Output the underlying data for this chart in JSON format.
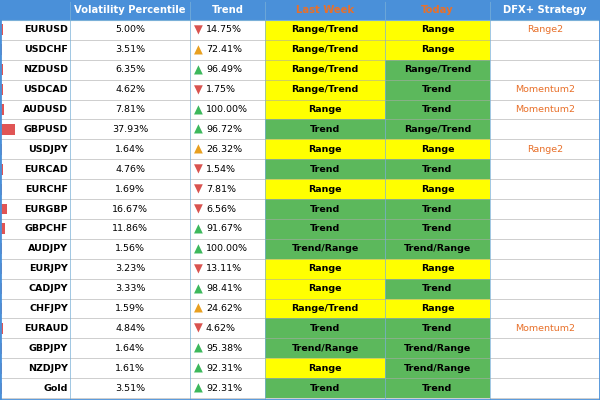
{
  "rows": [
    {
      "pair": "EURUSD",
      "vol": "5.00%",
      "arrow": "down",
      "trend": "14.75%",
      "last_week": "Range/Trend",
      "today": "Range",
      "strategy": "Range2",
      "vol_bar": 5.0
    },
    {
      "pair": "USDCHF",
      "vol": "3.51%",
      "arrow": "up_orange",
      "trend": "72.41%",
      "last_week": "Range/Trend",
      "today": "Range",
      "strategy": "",
      "vol_bar": 3.51
    },
    {
      "pair": "NZDUSD",
      "vol": "6.35%",
      "arrow": "up",
      "trend": "96.49%",
      "last_week": "Range/Trend",
      "today": "Range/Trend",
      "strategy": "",
      "vol_bar": 6.35
    },
    {
      "pair": "USDCAD",
      "vol": "4.62%",
      "arrow": "down",
      "trend": "1.75%",
      "last_week": "Range/Trend",
      "today": "Trend",
      "strategy": "Momentum2",
      "vol_bar": 4.62
    },
    {
      "pair": "AUDUSD",
      "vol": "7.81%",
      "arrow": "up",
      "trend": "100.00%",
      "last_week": "Range",
      "today": "Trend",
      "strategy": "Momentum2",
      "vol_bar": 7.81
    },
    {
      "pair": "GBPUSD",
      "vol": "37.93%",
      "arrow": "up",
      "trend": "96.72%",
      "last_week": "Trend",
      "today": "Range/Trend",
      "strategy": "",
      "vol_bar": 37.93
    },
    {
      "pair": "USDJPY",
      "vol": "1.64%",
      "arrow": "up_orange",
      "trend": "26.32%",
      "last_week": "Range",
      "today": "Range",
      "strategy": "Range2",
      "vol_bar": 1.64
    },
    {
      "pair": "EURCAD",
      "vol": "4.76%",
      "arrow": "down",
      "trend": "1.54%",
      "last_week": "Trend",
      "today": "Trend",
      "strategy": "",
      "vol_bar": 4.76
    },
    {
      "pair": "EURCHF",
      "vol": "1.69%",
      "arrow": "down",
      "trend": "7.81%",
      "last_week": "Range",
      "today": "Range",
      "strategy": "",
      "vol_bar": 1.69
    },
    {
      "pair": "EURGBP",
      "vol": "16.67%",
      "arrow": "down",
      "trend": "6.56%",
      "last_week": "Trend",
      "today": "Trend",
      "strategy": "",
      "vol_bar": 16.67
    },
    {
      "pair": "GBPCHF",
      "vol": "11.86%",
      "arrow": "up",
      "trend": "91.67%",
      "last_week": "Trend",
      "today": "Trend",
      "strategy": "",
      "vol_bar": 11.86
    },
    {
      "pair": "AUDJPY",
      "vol": "1.56%",
      "arrow": "up",
      "trend": "100.00%",
      "last_week": "Trend/Range",
      "today": "Trend/Range",
      "strategy": "",
      "vol_bar": 1.56
    },
    {
      "pair": "EURJPY",
      "vol": "3.23%",
      "arrow": "down",
      "trend": "13.11%",
      "last_week": "Range",
      "today": "Range",
      "strategy": "",
      "vol_bar": 3.23
    },
    {
      "pair": "CADJPY",
      "vol": "3.33%",
      "arrow": "up",
      "trend": "98.41%",
      "last_week": "Range",
      "today": "Trend",
      "strategy": "",
      "vol_bar": 3.33
    },
    {
      "pair": "CHFJPY",
      "vol": "1.59%",
      "arrow": "up_orange",
      "trend": "24.62%",
      "last_week": "Range/Trend",
      "today": "Range",
      "strategy": "",
      "vol_bar": 1.59
    },
    {
      "pair": "EURAUD",
      "vol": "4.84%",
      "arrow": "down",
      "trend": "4.62%",
      "last_week": "Trend",
      "today": "Trend",
      "strategy": "Momentum2",
      "vol_bar": 4.84
    },
    {
      "pair": "GBPJPY",
      "vol": "1.64%",
      "arrow": "up",
      "trend": "95.38%",
      "last_week": "Trend/Range",
      "today": "Trend/Range",
      "strategy": "",
      "vol_bar": 1.64
    },
    {
      "pair": "NZDJPY",
      "vol": "1.61%",
      "arrow": "up",
      "trend": "92.31%",
      "last_week": "Range",
      "today": "Trend/Range",
      "strategy": "",
      "vol_bar": 1.61
    },
    {
      "pair": "Gold",
      "vol": "3.51%",
      "arrow": "up",
      "trend": "92.31%",
      "last_week": "Trend",
      "today": "Trend",
      "strategy": "",
      "vol_bar": 3.51
    }
  ],
  "today_colors": {
    "EURUSD": "#ffff00",
    "USDCHF": "#ffff00",
    "NZDUSD": "#5cb85c",
    "USDCAD": "#5cb85c",
    "AUDUSD": "#5cb85c",
    "GBPUSD": "#5cb85c",
    "USDJPY": "#ffff00",
    "EURCAD": "#5cb85c",
    "EURCHF": "#ffff00",
    "EURGBP": "#5cb85c",
    "GBPCHF": "#5cb85c",
    "AUDJPY": "#5cb85c",
    "EURJPY": "#ffff00",
    "CADJPY": "#5cb85c",
    "CHFJPY": "#ffff00",
    "EURAUD": "#5cb85c",
    "GBPJPY": "#5cb85c",
    "NZDJPY": "#5cb85c",
    "Gold": "#5cb85c"
  },
  "lastweek_colors": {
    "EURUSD": "#ffff00",
    "USDCHF": "#ffff00",
    "NZDUSD": "#ffff00",
    "USDCAD": "#ffff00",
    "AUDUSD": "#ffff00",
    "GBPUSD": "#5cb85c",
    "USDJPY": "#ffff00",
    "EURCAD": "#5cb85c",
    "EURCHF": "#ffff00",
    "EURGBP": "#5cb85c",
    "GBPCHF": "#5cb85c",
    "AUDJPY": "#5cb85c",
    "EURJPY": "#ffff00",
    "CADJPY": "#ffff00",
    "CHFJPY": "#ffff00",
    "EURAUD": "#5cb85c",
    "GBPJPY": "#5cb85c",
    "NZDJPY": "#ffff00",
    "Gold": "#5cb85c"
  },
  "header_bg": "#4a90d9",
  "col_border": "#7ab0d8",
  "row_line": "#aaaaaa",
  "arrow_up_color": "#3cb85c",
  "arrow_down_color": "#d9534f",
  "arrow_orange_color": "#e8a020",
  "strategy_color": "#e8702a",
  "font_size": 6.8,
  "header_font_size": 7.2
}
